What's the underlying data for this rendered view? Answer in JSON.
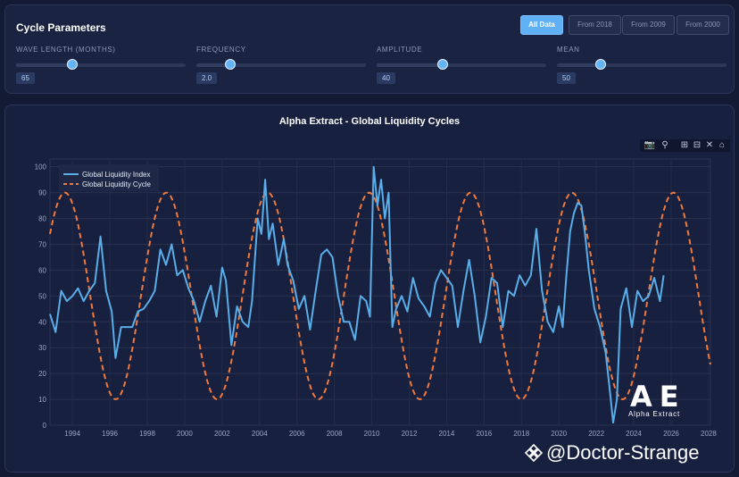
{
  "params": {
    "title": "Cycle Parameters",
    "buttons": [
      {
        "label": "All Data",
        "active": true
      },
      {
        "label": "From 2018",
        "active": false
      },
      {
        "label": "From 2009",
        "active": false
      },
      {
        "label": "From 2000",
        "active": false
      }
    ],
    "sliders": [
      {
        "label": "WAVE LENGTH (MONTHS)",
        "value": "65",
        "fraction": 0.33
      },
      {
        "label": "FREQUENCY",
        "value": "2.0",
        "fraction": 0.2
      },
      {
        "label": "AMPLITUDE",
        "value": "40",
        "fraction": 0.39
      },
      {
        "label": "MEAN",
        "value": "50",
        "fraction": 0.26
      }
    ]
  },
  "modebar": {
    "icons": [
      "camera-icon",
      "zoom-icon",
      "zoom-in-icon",
      "zoom-out-icon",
      "autoscale-icon",
      "home-icon"
    ]
  },
  "logo": {
    "mark": "AE",
    "text": "Alpha Extract"
  },
  "watermark": {
    "text": "@Doctor-Strange"
  },
  "colors": {
    "index": "#5aaee8",
    "cycle": "#f07a3c",
    "accent": "#5fb0f4",
    "background": "#131a33"
  },
  "chart_data": {
    "type": "line",
    "title": "Alpha Extract - Global Liquidity Cycles",
    "xlabel": "",
    "ylabel": "",
    "xlim": [
      1992.8,
      2028.1
    ],
    "ylim": [
      0,
      103
    ],
    "yticks": [
      0,
      10,
      20,
      30,
      40,
      50,
      60,
      70,
      80,
      90,
      100
    ],
    "xticks": [
      1994,
      1996,
      1998,
      2000,
      2002,
      2004,
      2006,
      2008,
      2010,
      2012,
      2014,
      2016,
      2018,
      2020,
      2022,
      2024,
      2026,
      2028
    ],
    "grid": true,
    "legend": {
      "placement": "top-left",
      "entries": [
        "Global Liquidity Index",
        "Global Liquidity Cycle"
      ]
    },
    "series": [
      {
        "name": "Global Liquidity Index",
        "style": "solid",
        "x": [
          1992.8,
          1993.1,
          1993.4,
          1993.7,
          1994.0,
          1994.3,
          1994.6,
          1994.9,
          1995.2,
          1995.5,
          1995.8,
          1996.1,
          1996.3,
          1996.6,
          1996.9,
          1997.2,
          1997.5,
          1997.8,
          1998.1,
          1998.4,
          1998.7,
          1999.0,
          1999.3,
          1999.6,
          1999.9,
          2000.2,
          2000.5,
          2000.8,
          2001.1,
          2001.4,
          2001.7,
          2002.0,
          2002.2,
          2002.5,
          2002.8,
          2003.1,
          2003.4,
          2003.6,
          2003.9,
          2004.1,
          2004.3,
          2004.5,
          2004.7,
          2005.0,
          2005.3,
          2005.5,
          2005.8,
          2006.1,
          2006.4,
          2006.7,
          2007.0,
          2007.3,
          2007.6,
          2007.9,
          2008.2,
          2008.5,
          2008.8,
          2009.1,
          2009.4,
          2009.7,
          2009.9,
          2010.1,
          2010.3,
          2010.5,
          2010.7,
          2010.9,
          2011.1,
          2011.3,
          2011.6,
          2011.9,
          2012.2,
          2012.5,
          2012.8,
          2013.1,
          2013.4,
          2013.7,
          2014.0,
          2014.3,
          2014.6,
          2014.9,
          2015.2,
          2015.5,
          2015.8,
          2016.1,
          2016.4,
          2016.7,
          2017.0,
          2017.3,
          2017.6,
          2017.9,
          2018.2,
          2018.5,
          2018.8,
          2019.1,
          2019.4,
          2019.7,
          2020.0,
          2020.2,
          2020.4,
          2020.6,
          2020.8,
          2021.0,
          2021.2,
          2021.4,
          2021.6,
          2021.9,
          2022.2,
          2022.5,
          2022.7,
          2022.9,
          2023.1,
          2023.3,
          2023.6,
          2023.9,
          2024.2,
          2024.5,
          2024.8,
          2025.1,
          2025.4,
          2025.6
        ],
        "y": [
          43,
          36,
          52,
          48,
          50,
          53,
          48,
          52,
          55,
          73,
          52,
          44,
          26,
          38,
          38,
          38,
          44,
          45,
          48,
          52,
          68,
          62,
          70,
          58,
          60,
          53,
          48,
          40,
          48,
          54,
          42,
          61,
          56,
          31,
          46,
          40,
          38,
          48,
          80,
          74,
          95,
          72,
          78,
          62,
          72,
          62,
          56,
          45,
          50,
          37,
          52,
          66,
          68,
          65,
          50,
          40,
          40,
          33,
          50,
          48,
          42,
          100,
          85,
          95,
          80,
          90,
          38,
          45,
          50,
          44,
          57,
          49,
          46,
          42,
          55,
          60,
          57,
          54,
          38,
          52,
          64,
          50,
          32,
          42,
          57,
          55,
          38,
          52,
          50,
          58,
          54,
          58,
          76,
          52,
          40,
          36,
          46,
          38,
          58,
          75,
          82,
          86,
          85,
          74,
          60,
          45,
          38,
          28,
          15,
          1,
          10,
          45,
          53,
          38,
          52,
          48,
          50,
          57,
          48,
          58
        ]
      },
      {
        "name": "Global Liquidity Cycle",
        "style": "dashed",
        "model": "mean + amplitude × cosine",
        "mean": 50,
        "amplitude": 40,
        "period_years": 5.42,
        "peak_year": 1993.6,
        "x_range": [
          1992.8,
          2028.1
        ]
      }
    ]
  }
}
